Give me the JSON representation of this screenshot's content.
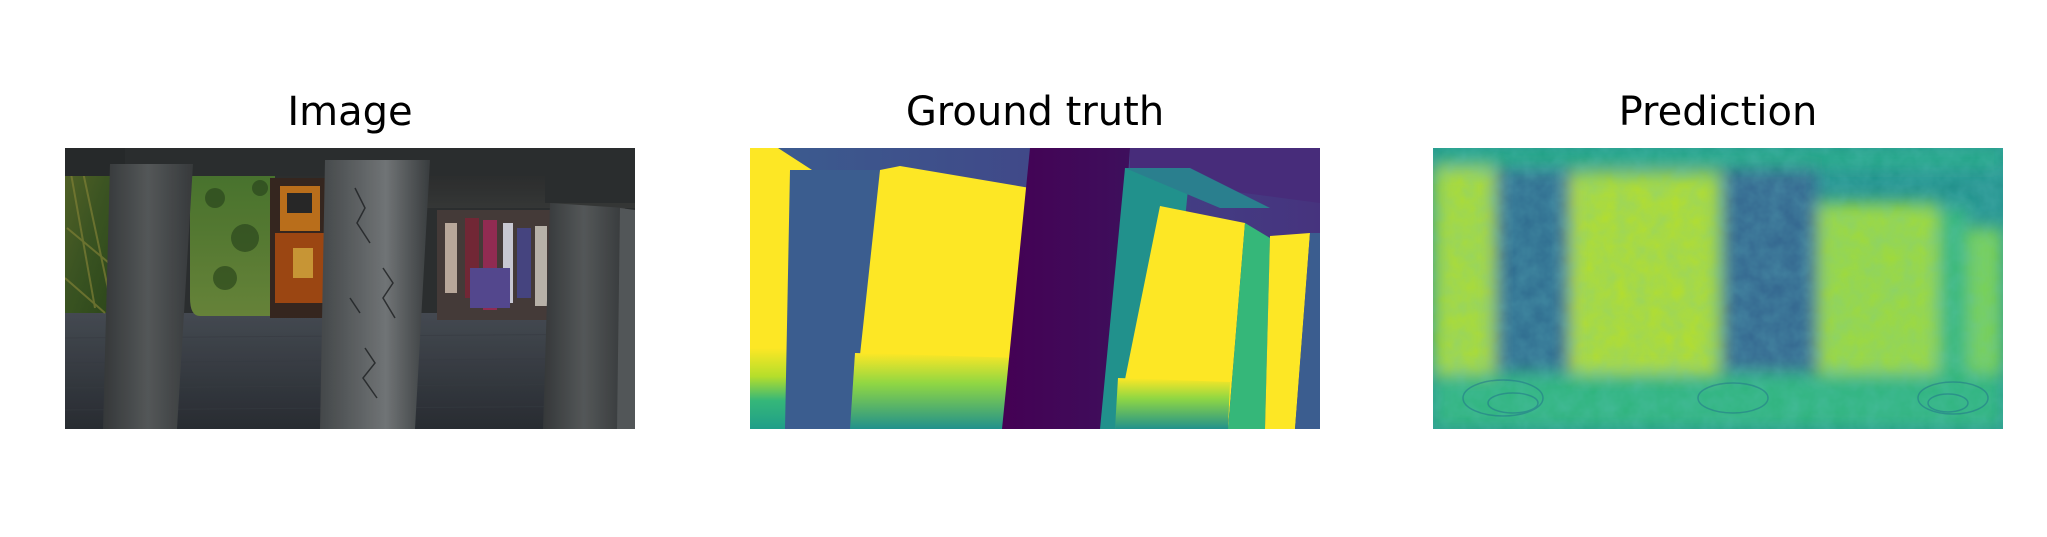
{
  "figure": {
    "panels": [
      {
        "title": "Image",
        "content": "rgb-scene"
      },
      {
        "title": "Ground truth",
        "content": "depth-map"
      },
      {
        "title": "Prediction",
        "content": "predicted-depth-map"
      }
    ],
    "colormap": "viridis",
    "colors": {
      "viridis_yellow": "#fde725",
      "viridis_blue": "#3b5d8f",
      "viridis_teal": "#21918c",
      "viridis_green": "#5ec962",
      "viridis_purple": "#440154"
    }
  }
}
